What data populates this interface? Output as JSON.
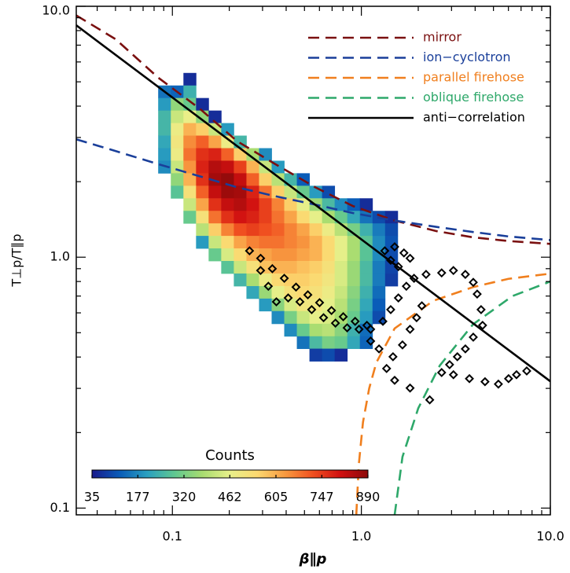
{
  "chart_data": {
    "type": "heatmap",
    "xlabel": "β∥p",
    "ylabel": "T⊥p/T∥p",
    "xscale": "log",
    "yscale": "log",
    "xlim": [
      0.031,
      10
    ],
    "ylim": [
      0.094,
      10
    ],
    "xticks": [
      0.1,
      {
        "value": 1,
        "label": "1.0"
      },
      {
        "value": 10,
        "label": "10.0"
      }
    ],
    "yticks": [
      0.1,
      {
        "value": 1,
        "label": "1.0"
      },
      {
        "value": 10,
        "label": "10.0"
      }
    ],
    "xminorticks": [
      0.04,
      0.05,
      0.06,
      0.07,
      0.08,
      0.09,
      0.2,
      0.3,
      0.4,
      0.5,
      0.6,
      0.7,
      0.8,
      0.9,
      2,
      3,
      4,
      5,
      6,
      7,
      8,
      9
    ],
    "yminorticks": [
      0.2,
      0.3,
      0.4,
      0.5,
      0.6,
      0.7,
      0.8,
      0.9,
      2,
      3,
      4,
      5,
      6,
      7,
      8,
      9
    ],
    "legend": "upper right",
    "heatmap": {
      "xbins": [
        0.0841,
        0.0981,
        0.1144,
        0.1334,
        0.1555,
        0.1813,
        0.2114,
        0.2465,
        0.2874,
        0.3351,
        0.3907,
        0.4556,
        0.5312,
        0.6194,
        0.7222,
        0.8421,
        0.9819,
        1.145,
        1.335,
        1.557,
        1.815,
        2.116,
        2.468
      ],
      "ybins": [
        5.425,
        4.835,
        4.31,
        3.841,
        3.424,
        3.052,
        2.72,
        2.424,
        2.161,
        1.926,
        1.717,
        1.53,
        1.364,
        1.216,
        1.084,
        0.966,
        0.861,
        0.767,
        0.684,
        0.61,
        0.543,
        0.484,
        0.432,
        0.385
      ],
      "z": [
        [
          null,
          null,
          60,
          null,
          null,
          null,
          null,
          null,
          null,
          null,
          null,
          null,
          null,
          null,
          null,
          null,
          null,
          null,
          null,
          null,
          null,
          null
        ],
        [
          150,
          130,
          240,
          null,
          null,
          null,
          null,
          null,
          null,
          null,
          null,
          null,
          null,
          null,
          null,
          null,
          null,
          null,
          null,
          null,
          null,
          null
        ],
        [
          200,
          350,
          300,
          60,
          null,
          null,
          null,
          null,
          null,
          null,
          null,
          null,
          null,
          null,
          null,
          null,
          null,
          null,
          null,
          null,
          null,
          null
        ],
        [
          250,
          420,
          470,
          350,
          60,
          null,
          null,
          null,
          null,
          null,
          null,
          null,
          null,
          null,
          null,
          null,
          null,
          null,
          null,
          null,
          null,
          null
        ],
        [
          250,
          480,
          600,
          560,
          420,
          200,
          null,
          null,
          null,
          null,
          null,
          null,
          null,
          null,
          null,
          null,
          null,
          null,
          null,
          null,
          null,
          null
        ],
        [
          220,
          500,
          650,
          700,
          620,
          480,
          250,
          null,
          null,
          null,
          null,
          null,
          null,
          null,
          null,
          null,
          null,
          null,
          null,
          null,
          null,
          null
        ],
        [
          200,
          480,
          680,
          760,
          780,
          700,
          560,
          380,
          180,
          null,
          null,
          null,
          null,
          null,
          null,
          null,
          null,
          null,
          null,
          null,
          null,
          null
        ],
        [
          180,
          420,
          640,
          780,
          840,
          820,
          740,
          600,
          420,
          200,
          null,
          null,
          null,
          null,
          null,
          null,
          null,
          null,
          null,
          null,
          null,
          null
        ],
        [
          null,
          350,
          600,
          760,
          860,
          880,
          820,
          700,
          560,
          400,
          250,
          120,
          null,
          null,
          null,
          null,
          null,
          null,
          null,
          null,
          null,
          null
        ],
        [
          null,
          280,
          520,
          700,
          820,
          870,
          860,
          780,
          680,
          560,
          420,
          300,
          200,
          100,
          null,
          null,
          null,
          null,
          null,
          null,
          null,
          null
        ],
        [
          null,
          null,
          420,
          620,
          760,
          820,
          840,
          800,
          740,
          660,
          560,
          460,
          360,
          260,
          180,
          120,
          60,
          null,
          null,
          null,
          null,
          null
        ],
        [
          null,
          null,
          300,
          520,
          680,
          760,
          800,
          780,
          740,
          680,
          620,
          540,
          460,
          380,
          300,
          220,
          150,
          100,
          60,
          null,
          null,
          null
        ],
        [
          null,
          null,
          null,
          400,
          560,
          660,
          720,
          740,
          720,
          700,
          660,
          620,
          560,
          480,
          400,
          320,
          240,
          160,
          100,
          null,
          null,
          null
        ],
        [
          null,
          null,
          null,
          200,
          420,
          540,
          620,
          660,
          680,
          680,
          660,
          640,
          600,
          540,
          460,
          380,
          280,
          180,
          110,
          null,
          null,
          null
        ],
        [
          null,
          null,
          null,
          null,
          300,
          440,
          540,
          600,
          620,
          640,
          640,
          620,
          600,
          540,
          460,
          380,
          280,
          180,
          100,
          null,
          null,
          null
        ],
        [
          null,
          null,
          null,
          null,
          null,
          280,
          420,
          520,
          580,
          600,
          600,
          580,
          560,
          520,
          440,
          360,
          260,
          160,
          90,
          null,
          null,
          null
        ],
        [
          null,
          null,
          null,
          null,
          null,
          null,
          250,
          380,
          480,
          540,
          560,
          560,
          540,
          500,
          440,
          360,
          260,
          160,
          80,
          null,
          null,
          null
        ],
        [
          null,
          null,
          null,
          null,
          null,
          null,
          null,
          220,
          360,
          460,
          520,
          540,
          520,
          480,
          420,
          340,
          240,
          140,
          null,
          null,
          null,
          null
        ],
        [
          null,
          null,
          null,
          null,
          null,
          null,
          null,
          null,
          200,
          340,
          440,
          500,
          500,
          460,
          400,
          320,
          220,
          120,
          null,
          null,
          null,
          null
        ],
        [
          null,
          null,
          null,
          null,
          null,
          null,
          null,
          null,
          null,
          180,
          320,
          420,
          460,
          440,
          380,
          300,
          200,
          100,
          null,
          null,
          null,
          null
        ],
        [
          null,
          null,
          null,
          null,
          null,
          null,
          null,
          null,
          null,
          null,
          180,
          300,
          380,
          400,
          340,
          240,
          140,
          null,
          null,
          null,
          null,
          null
        ],
        [
          null,
          null,
          null,
          null,
          null,
          null,
          null,
          null,
          null,
          null,
          null,
          150,
          260,
          320,
          300,
          220,
          130,
          null,
          null,
          null,
          null,
          null
        ],
        [
          null,
          null,
          null,
          null,
          null,
          null,
          null,
          null,
          null,
          null,
          null,
          null,
          80,
          100,
          60,
          null,
          null,
          null,
          null,
          null,
          null,
          null
        ]
      ],
      "zlim": [
        35,
        890
      ],
      "colorscale": [
        "#1a1a8c",
        "#0a5cb8",
        "#2aa0c0",
        "#60c890",
        "#a8dc70",
        "#e8f08a",
        "#fcd870",
        "#f89a40",
        "#f05020",
        "#d01010",
        "#8c0a0a"
      ],
      "colorbar": {
        "title": "Counts",
        "ticks": [
          35,
          177,
          320,
          462,
          605,
          747,
          890
        ]
      }
    },
    "series": [
      {
        "name": "mirror",
        "type": "line",
        "color": "#7a1010",
        "dashed": true,
        "x": [
          0.031,
          0.05,
          0.084,
          0.14,
          0.22,
          0.35,
          0.57,
          0.9,
          1.5,
          2.5,
          3.9,
          6,
          10
        ],
        "y": [
          9.2,
          7.4,
          5.2,
          3.9,
          2.9,
          2.35,
          1.9,
          1.6,
          1.4,
          1.27,
          1.2,
          1.16,
          1.13
        ]
      },
      {
        "name": "ion−cyclotron",
        "type": "line",
        "color": "#1a3f9a",
        "dashed": true,
        "x": [
          0.031,
          0.05,
          0.084,
          0.14,
          0.22,
          0.35,
          0.57,
          0.9,
          1.5,
          2.5,
          3.9,
          6,
          10
        ],
        "y": [
          2.95,
          2.65,
          2.35,
          2.1,
          1.9,
          1.75,
          1.62,
          1.5,
          1.4,
          1.32,
          1.26,
          1.21,
          1.17
        ]
      },
      {
        "name": "parallel firehose",
        "type": "line",
        "color": "#f07f1e",
        "dashed": true,
        "x": [
          0.94,
          0.97,
          1.02,
          1.1,
          1.2,
          1.5,
          2.4,
          3.9,
          6,
          10
        ],
        "y": [
          0.094,
          0.15,
          0.22,
          0.3,
          0.38,
          0.52,
          0.67,
          0.76,
          0.82,
          0.86
        ]
      },
      {
        "name": "oblique firehose",
        "type": "line",
        "color": "#2ea86a",
        "dashed": true,
        "x": [
          1.5,
          1.65,
          2.0,
          2.6,
          3.9,
          6.3,
          10
        ],
        "y": [
          0.094,
          0.16,
          0.25,
          0.37,
          0.54,
          0.7,
          0.8
        ]
      },
      {
        "name": "anti−correlation",
        "type": "line",
        "color": "#000000",
        "dashed": false,
        "x": [
          0.031,
          10
        ],
        "y": [
          8.4,
          0.32
        ]
      },
      {
        "type": "scatter",
        "marker": "diamond",
        "color": "#000000",
        "x": [
          0.256,
          0.293,
          0.338,
          0.391,
          0.451,
          0.521,
          0.601,
          0.695,
          0.802,
          0.927,
          1.07,
          0.293,
          0.322,
          0.355,
          0.41,
          0.473,
          0.546,
          0.631,
          0.729,
          0.841,
          0.972,
          1.12,
          1.3,
          1.43,
          1.57,
          1.73,
          1.9,
          2.2,
          2.66,
          3.07,
          3.55,
          3.91,
          4.1,
          4.3,
          4.38,
          3.91,
          3.55,
          3.22,
          2.93,
          2.66,
          3.07,
          3.73,
          4.51,
          5.31,
          6.01,
          6.62,
          7.5,
          1.33,
          1.5,
          1.68,
          1.81,
          1.57,
          1.43,
          2.09,
          1.96,
          1.81,
          1.65,
          1.47,
          1.36,
          1.5,
          1.81,
          2.3,
          1.12,
          1.24
        ],
        "y": [
          1.06,
          0.99,
          0.9,
          0.824,
          0.76,
          0.708,
          0.659,
          0.613,
          0.579,
          0.555,
          0.535,
          0.885,
          0.766,
          0.664,
          0.688,
          0.664,
          0.618,
          0.574,
          0.546,
          0.523,
          0.516,
          0.516,
          0.555,
          0.618,
          0.688,
          0.766,
          0.824,
          0.854,
          0.866,
          0.885,
          0.854,
          0.794,
          0.713,
          0.618,
          0.535,
          0.48,
          0.431,
          0.401,
          0.373,
          0.347,
          0.34,
          0.328,
          0.319,
          0.312,
          0.328,
          0.34,
          0.352,
          1.06,
          1.1,
          1.04,
          0.99,
          0.917,
          0.972,
          0.64,
          0.574,
          0.516,
          0.447,
          0.401,
          0.36,
          0.323,
          0.301,
          0.27,
          0.463,
          0.431
        ]
      }
    ]
  }
}
